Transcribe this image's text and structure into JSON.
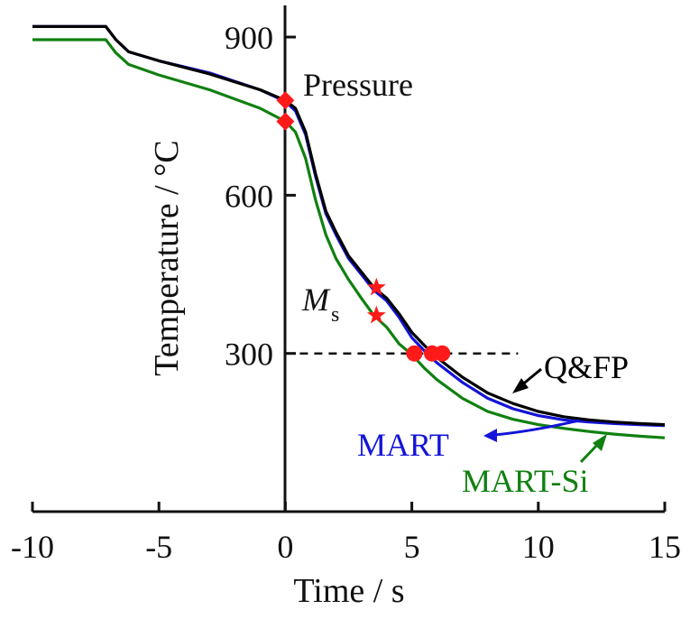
{
  "chart_data": {
    "type": "line",
    "xlabel": "Time / s",
    "ylabel": "Temperature / °C",
    "xlim": [
      -10,
      15
    ],
    "ylim": [
      0,
      960
    ],
    "x_ticks": [
      -10,
      -5,
      0,
      5,
      10,
      15
    ],
    "y_ticks": [
      300,
      600,
      900
    ],
    "grid": false,
    "series": [
      {
        "name": "Q&FP",
        "color": "#000000",
        "points": [
          [
            -10,
            920
          ],
          [
            -7.1,
            920
          ],
          [
            -6.7,
            895
          ],
          [
            -6.2,
            872
          ],
          [
            -5,
            855
          ],
          [
            -3,
            830
          ],
          [
            -1,
            800
          ],
          [
            0,
            780
          ],
          [
            0.4,
            765
          ],
          [
            0.8,
            720
          ],
          [
            1.2,
            640
          ],
          [
            1.6,
            570
          ],
          [
            2,
            530
          ],
          [
            2.5,
            485
          ],
          [
            3,
            455
          ],
          [
            3.5,
            425
          ],
          [
            4,
            405
          ],
          [
            4.5,
            375
          ],
          [
            5,
            340
          ],
          [
            5.5,
            315
          ],
          [
            6,
            292
          ],
          [
            7,
            255
          ],
          [
            8,
            225
          ],
          [
            9,
            205
          ],
          [
            10,
            190
          ],
          [
            11,
            180
          ],
          [
            12,
            174
          ],
          [
            13,
            170
          ],
          [
            14,
            167
          ],
          [
            15,
            165
          ]
        ]
      },
      {
        "name": "MART",
        "color": "#1414d8",
        "points": [
          [
            -10,
            920
          ],
          [
            -7.1,
            920
          ],
          [
            -6.7,
            895
          ],
          [
            -6.2,
            872
          ],
          [
            -5,
            855
          ],
          [
            -3,
            832
          ],
          [
            -1,
            800
          ],
          [
            0,
            778
          ],
          [
            0.4,
            760
          ],
          [
            0.8,
            715
          ],
          [
            1.2,
            635
          ],
          [
            1.6,
            565
          ],
          [
            2,
            525
          ],
          [
            2.5,
            480
          ],
          [
            3,
            450
          ],
          [
            3.5,
            420
          ],
          [
            4,
            400
          ],
          [
            4.5,
            368
          ],
          [
            5,
            330
          ],
          [
            5.5,
            305
          ],
          [
            6,
            282
          ],
          [
            7,
            245
          ],
          [
            8,
            215
          ],
          [
            9,
            195
          ],
          [
            10,
            182
          ],
          [
            11,
            174
          ],
          [
            12,
            170
          ],
          [
            13,
            167
          ],
          [
            14,
            165
          ],
          [
            15,
            163
          ]
        ]
      },
      {
        "name": "MART-Si",
        "color": "#108010",
        "points": [
          [
            -10,
            895
          ],
          [
            -7.1,
            895
          ],
          [
            -6.7,
            870
          ],
          [
            -6.2,
            848
          ],
          [
            -5,
            828
          ],
          [
            -3,
            800
          ],
          [
            -1,
            765
          ],
          [
            0,
            740
          ],
          [
            0.4,
            720
          ],
          [
            0.8,
            670
          ],
          [
            1.2,
            590
          ],
          [
            1.6,
            525
          ],
          [
            2,
            480
          ],
          [
            2.5,
            440
          ],
          [
            3,
            405
          ],
          [
            3.5,
            372
          ],
          [
            4,
            350
          ],
          [
            4.5,
            318
          ],
          [
            5,
            298
          ],
          [
            5.5,
            272
          ],
          [
            6,
            250
          ],
          [
            7,
            215
          ],
          [
            8,
            190
          ],
          [
            9,
            175
          ],
          [
            10,
            165
          ],
          [
            11,
            158
          ],
          [
            12,
            152
          ],
          [
            13,
            147
          ],
          [
            14,
            143
          ],
          [
            15,
            140
          ]
        ]
      }
    ],
    "markers": {
      "pressure_diamonds": [
        [
          0,
          780
        ],
        [
          0,
          740
        ]
      ],
      "ms_stars": [
        [
          3.6,
          425
        ],
        [
          3.6,
          372
        ]
      ],
      "circles_at_300": [
        [
          5.1,
          300
        ],
        [
          5.8,
          300
        ],
        [
          6.2,
          300
        ]
      ]
    },
    "reference_line": {
      "y": 300,
      "x_start": 0,
      "x_end": 9.2
    },
    "annotations": {
      "pressure": "Pressure",
      "ms_main": "M",
      "ms_sub": "s",
      "qfp": "Q&FP",
      "mart": "MART",
      "mart_si": "MART-Si"
    },
    "colors": {
      "marker": "#ff1a1a",
      "axis": "#111111"
    }
  }
}
